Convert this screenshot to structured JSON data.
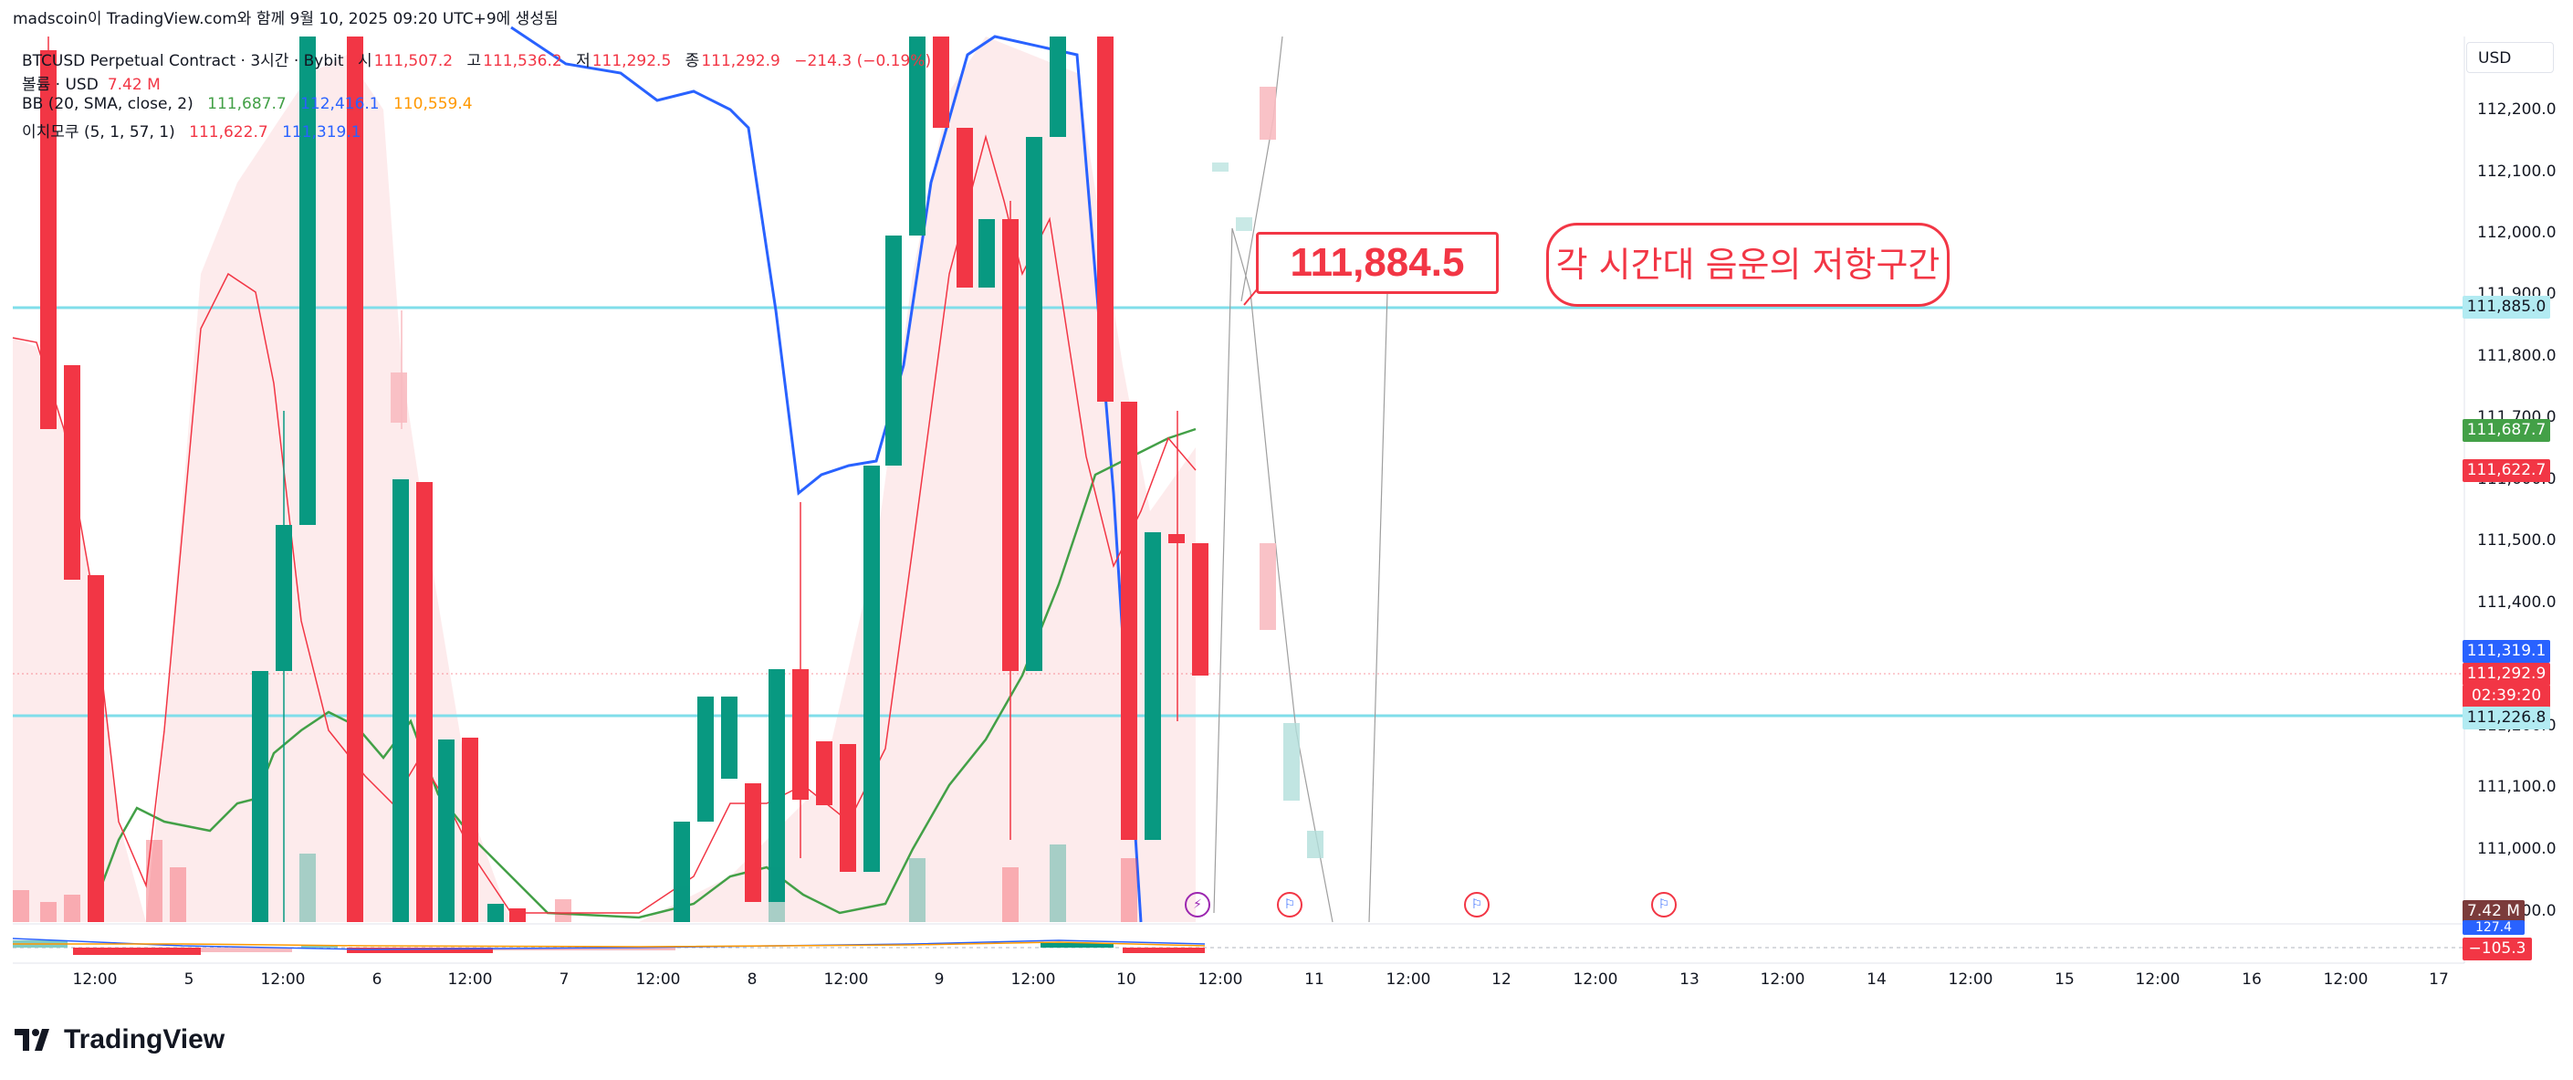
{
  "caption": "madscoin이 TradingView.com와 함께 9월 10, 2025 09:20 UTC+9에 생성됨",
  "symbol": {
    "title": "BTCUSD Perpetual Contract · 3시간 · Bybit",
    "open_label": "시",
    "open": "111,507.2",
    "high_label": "고",
    "high": "111,536.2",
    "low_label": "저",
    "low": "111,292.5",
    "close_label": "종",
    "close": "111,292.9",
    "change": "−214.3 (−0.19%)"
  },
  "volume_legend": {
    "label": "볼륨 · USD",
    "value": "7.42 M"
  },
  "bb_legend": {
    "label": "BB (20, SMA, close, 2)",
    "basis": "111,687.7",
    "upper": "112,416.1",
    "lower": "110,559.4"
  },
  "ichimoku_legend": {
    "label": "이치모쿠 (5, 1, 57, 1)",
    "v1": "111,622.7",
    "v2": "111,319.1"
  },
  "currency_button": "USD",
  "price_ticks": [
    "112,200.0",
    "112,100.0",
    "112,000.0",
    "111,900.0",
    "111,800.0",
    "111,700.0",
    "111,600.0",
    "111,500.0",
    "111,400.0",
    "111,300.0",
    "111,200.0",
    "111,100.0",
    "111,000.0",
    "110,900.0"
  ],
  "price_labels": {
    "line_upper": "111,885.0",
    "bb_basis": "111,687.7",
    "ichimoku_1": "111,622.7",
    "ichimoku_2": "111,319.1",
    "last_price": "111,292.9",
    "countdown": "02:39:20",
    "line_lower": "111,226.8",
    "volume": "7.42 M",
    "osc_value": "127.4",
    "osc_value2": "−105.3"
  },
  "time_ticks": [
    "12:00",
    "5",
    "12:00",
    "6",
    "12:00",
    "7",
    "12:00",
    "8",
    "12:00",
    "9",
    "12:00",
    "10",
    "12:00",
    "11",
    "12:00",
    "12",
    "12:00",
    "13",
    "12:00",
    "14",
    "12:00",
    "15",
    "12:00",
    "16",
    "12:00",
    "17"
  ],
  "annotations": {
    "price_box": "111,884.5",
    "note": "각 시간대 음운의 저항구간"
  },
  "logo_text": "TradingView",
  "colors": {
    "up": "#089981",
    "down": "#f23645",
    "bb_basis": "#43a047",
    "ichimoku": "#2962ff",
    "hline": "#80deea",
    "cloud": "#fde7e9"
  }
}
